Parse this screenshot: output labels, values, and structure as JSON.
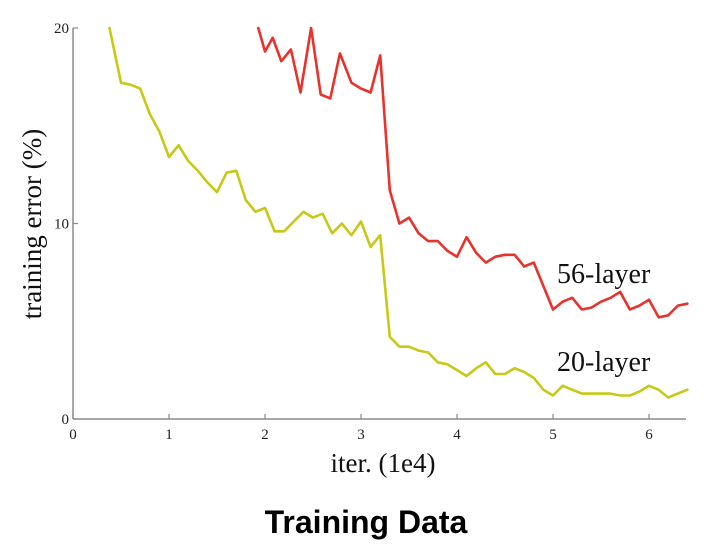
{
  "chart_data": {
    "type": "line",
    "title": "",
    "caption": "Training Data",
    "xlabel": "iter. (1e4)",
    "ylabel": "training error (%)",
    "xlim": [
      0,
      6.4
    ],
    "ylim": [
      0,
      20
    ],
    "x_ticks": [
      "0",
      "1",
      "2",
      "3",
      "4",
      "5",
      "6"
    ],
    "y_ticks": [
      "0",
      "10",
      "20"
    ],
    "grid": false,
    "series": [
      {
        "name": "56-layer",
        "color": "#e8322c",
        "x": [
          1.93,
          2.0,
          2.08,
          2.17,
          2.27,
          2.37,
          2.48,
          2.58,
          2.68,
          2.78,
          2.9,
          3.0,
          3.1,
          3.2,
          3.3,
          3.4,
          3.5,
          3.6,
          3.7,
          3.8,
          3.9,
          4.0,
          4.1,
          4.2,
          4.3,
          4.4,
          4.5,
          4.6,
          4.7,
          4.8,
          4.9,
          5.0,
          5.1,
          5.2,
          5.3,
          5.4,
          5.5,
          5.6,
          5.7,
          5.8,
          5.9,
          6.0,
          6.1,
          6.2,
          6.3,
          6.4
        ],
        "values": [
          20.0,
          18.8,
          19.5,
          18.3,
          18.9,
          16.7,
          20.0,
          16.6,
          16.4,
          18.7,
          17.2,
          16.9,
          16.7,
          18.6,
          11.7,
          10.0,
          10.3,
          9.5,
          9.1,
          9.1,
          8.6,
          8.3,
          9.3,
          8.5,
          8.0,
          8.3,
          8.4,
          8.4,
          7.8,
          8.0,
          6.8,
          5.6,
          6.0,
          6.2,
          5.6,
          5.7,
          6.0,
          6.2,
          6.5,
          5.6,
          5.8,
          6.1,
          5.2,
          5.3,
          5.8,
          5.9
        ]
      },
      {
        "name": "20-layer",
        "color": "#c8c817",
        "x": [
          0.38,
          0.5,
          0.6,
          0.7,
          0.8,
          0.9,
          1.0,
          1.1,
          1.2,
          1.3,
          1.4,
          1.5,
          1.6,
          1.7,
          1.8,
          1.9,
          2.0,
          2.1,
          2.2,
          2.3,
          2.4,
          2.5,
          2.6,
          2.7,
          2.8,
          2.9,
          3.0,
          3.1,
          3.2,
          3.3,
          3.4,
          3.5,
          3.6,
          3.7,
          3.8,
          3.9,
          4.0,
          4.1,
          4.2,
          4.3,
          4.4,
          4.5,
          4.6,
          4.7,
          4.8,
          4.9,
          5.0,
          5.1,
          5.2,
          5.3,
          5.4,
          5.5,
          5.6,
          5.7,
          5.8,
          5.9,
          6.0,
          6.1,
          6.2,
          6.3,
          6.4
        ],
        "values": [
          20.0,
          17.2,
          17.1,
          16.9,
          15.6,
          14.7,
          13.4,
          14.0,
          13.2,
          12.7,
          12.1,
          11.6,
          12.6,
          12.7,
          11.2,
          10.6,
          10.8,
          9.6,
          9.6,
          10.1,
          10.6,
          10.3,
          10.5,
          9.5,
          10.0,
          9.4,
          10.1,
          8.8,
          9.4,
          4.2,
          3.7,
          3.7,
          3.5,
          3.4,
          2.9,
          2.8,
          2.5,
          2.2,
          2.6,
          2.9,
          2.3,
          2.3,
          2.6,
          2.4,
          2.1,
          1.5,
          1.2,
          1.7,
          1.5,
          1.3,
          1.3,
          1.3,
          1.3,
          1.2,
          1.2,
          1.4,
          1.7,
          1.5,
          1.1,
          1.3,
          1.5
        ]
      }
    ]
  }
}
